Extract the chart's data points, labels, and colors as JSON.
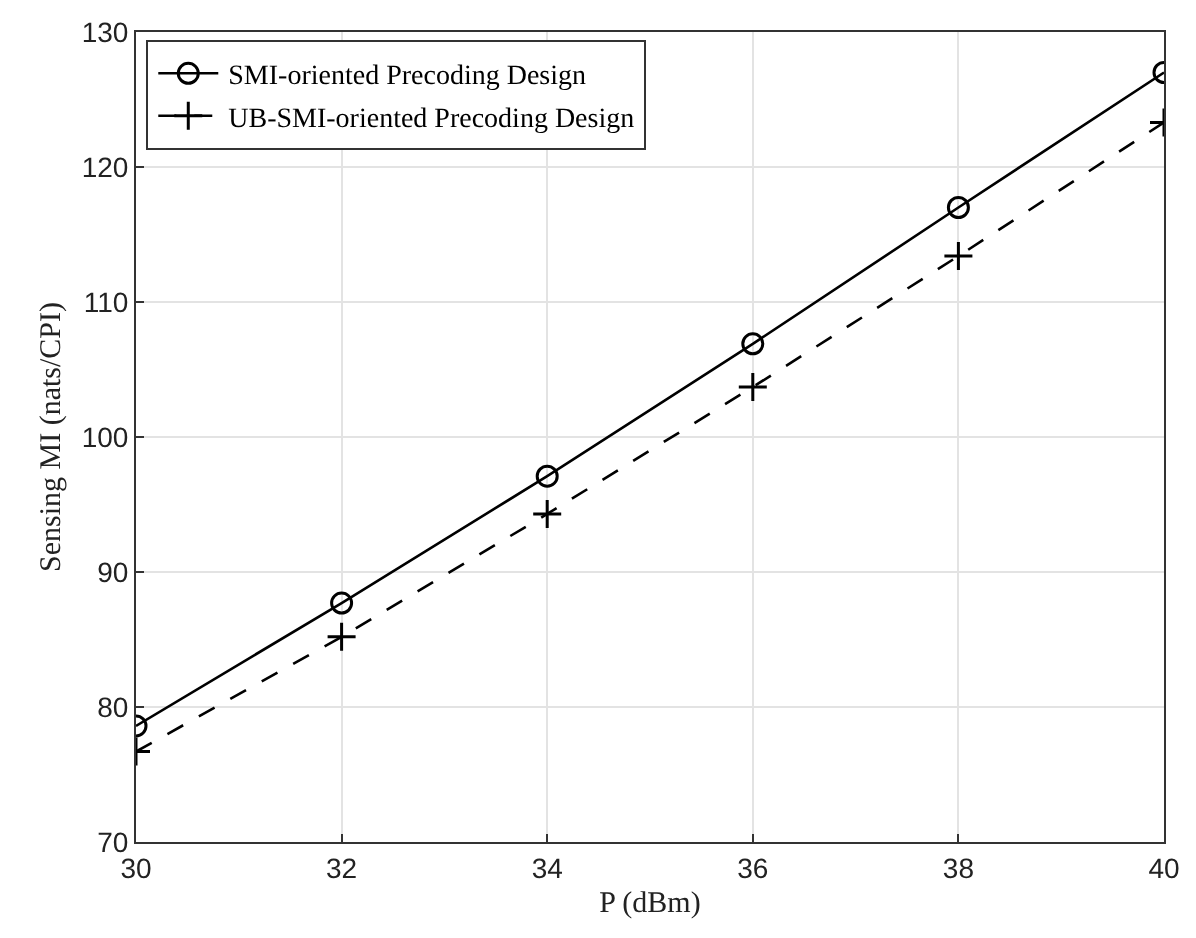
{
  "chart_data": {
    "type": "line",
    "xlabel": "P (dBm)",
    "ylabel": "Sensing MI (nats/CPI)",
    "x": [
      30,
      32,
      34,
      36,
      38,
      40
    ],
    "series": [
      {
        "name": "SMI-oriented Precoding Design",
        "color": "#000000",
        "marker": "circle",
        "line_style": "solid",
        "values": [
          78.6,
          87.7,
          97.1,
          106.9,
          117.0,
          127.0
        ]
      },
      {
        "name": "UB-SMI-oriented Precoding Design",
        "color": "#000000",
        "marker": "cross",
        "line_style": "dashed",
        "values": [
          76.7,
          85.2,
          94.3,
          103.7,
          113.4,
          123.3
        ]
      }
    ],
    "xlim": [
      30,
      40
    ],
    "xticks": [
      30,
      32,
      34,
      36,
      38,
      40
    ],
    "ylim": [
      70,
      130
    ],
    "yticks": [
      70,
      80,
      90,
      100,
      110,
      120,
      130
    ],
    "grid": true,
    "legend": "top left"
  }
}
